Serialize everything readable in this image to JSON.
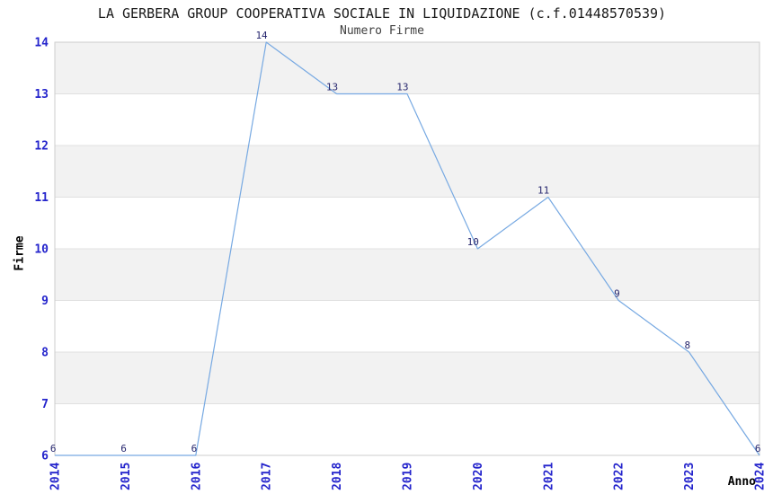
{
  "chart_data": {
    "type": "line",
    "title": "LA GERBERA GROUP COOPERATIVA SOCIALE IN LIQUIDAZIONE (c.f.01448570539)",
    "subtitle": "Numero Firme",
    "xlabel": "Anno",
    "ylabel": "Firme",
    "categories": [
      "2014",
      "2015",
      "2016",
      "2017",
      "2018",
      "2019",
      "2020",
      "2021",
      "2022",
      "2023",
      "2024"
    ],
    "values": [
      6,
      6,
      6,
      14,
      13,
      13,
      10,
      11,
      9,
      8,
      6
    ],
    "ylim": [
      6,
      14
    ],
    "yticks": [
      6,
      7,
      8,
      9,
      10,
      11,
      12,
      13,
      14
    ],
    "legend_visible": false,
    "grid": "horizontal-bands-and-gridlines",
    "data_labels_visible": true,
    "colors": {
      "line": "#77a9e2",
      "tick_labels": "#2424cc",
      "data_labels": "#26266e",
      "band_light": "#ffffff",
      "band_dark": "#f2f2f2",
      "gridline": "#e0e0e0",
      "border": "#cccccc",
      "title": "#1a1a1a",
      "subtitle": "#404040",
      "axis_labels": "#000000"
    }
  }
}
